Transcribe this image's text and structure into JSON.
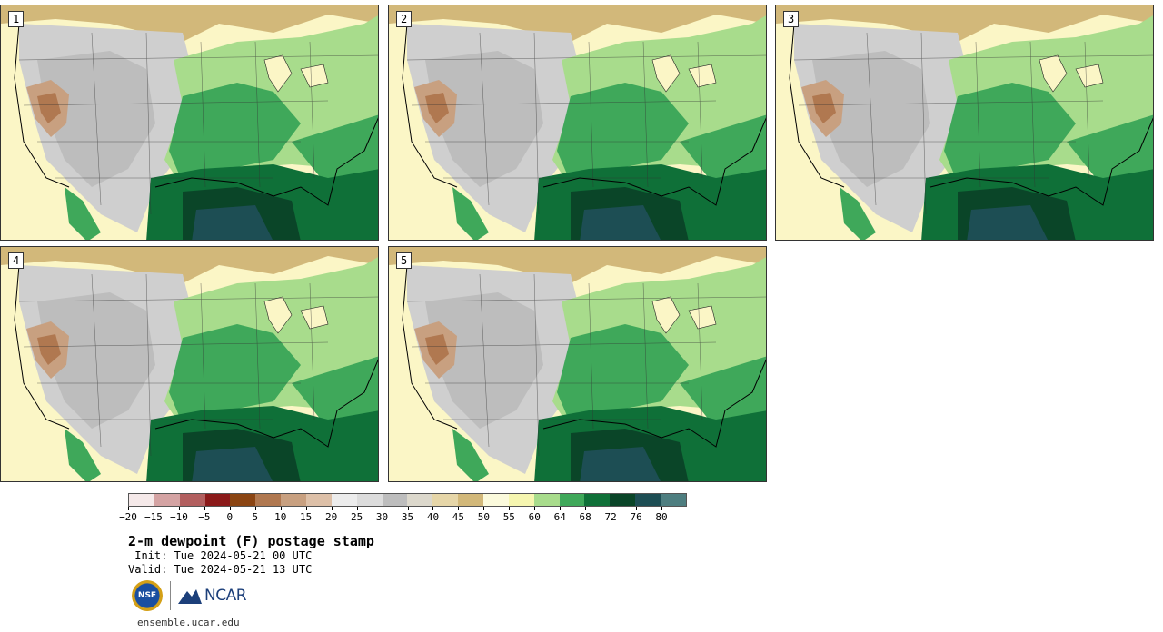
{
  "panels": [
    {
      "label": "1"
    },
    {
      "label": "2"
    },
    {
      "label": "3"
    },
    {
      "label": "4"
    },
    {
      "label": "5"
    }
  ],
  "colorbar": {
    "colors": [
      "#f5e9e9",
      "#d4a3a3",
      "#b25f5f",
      "#8b1a1a",
      "#8b4513",
      "#b07850",
      "#c8a080",
      "#ddc0a8",
      "#ececec",
      "#dcdcdc",
      "#bdbdbd",
      "#dcd8cc",
      "#e6d6a8",
      "#d2b87a",
      "#fbfadc",
      "#f6f6b0",
      "#a8dc8c",
      "#3fa85a",
      "#0f7038",
      "#0a4528",
      "#1d4e54",
      "#4e7e80"
    ],
    "tick_labels": [
      "−20",
      "−15",
      "−10",
      "−5",
      "0",
      "5",
      "10",
      "15",
      "20",
      "25",
      "30",
      "35",
      "40",
      "45",
      "50",
      "55",
      "60",
      "64",
      "68",
      "72",
      "76",
      "80"
    ]
  },
  "title": "2-m dewpoint (F) postage stamp",
  "init_text": " Init: Tue 2024-05-21 00 UTC",
  "valid_text": "Valid: Tue 2024-05-21 13 UTC",
  "logos": {
    "nsf": "NSF",
    "ncar": "NCAR"
  },
  "site": "ensemble.ucar.edu"
}
